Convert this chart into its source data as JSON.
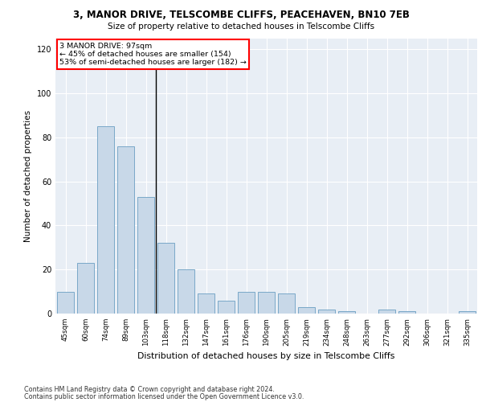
{
  "title1": "3, MANOR DRIVE, TELSCOMBE CLIFFS, PEACEHAVEN, BN10 7EB",
  "title2": "Size of property relative to detached houses in Telscombe Cliffs",
  "xlabel": "Distribution of detached houses by size in Telscombe Cliffs",
  "ylabel": "Number of detached properties",
  "categories": [
    "45sqm",
    "60sqm",
    "74sqm",
    "89sqm",
    "103sqm",
    "118sqm",
    "132sqm",
    "147sqm",
    "161sqm",
    "176sqm",
    "190sqm",
    "205sqm",
    "219sqm",
    "234sqm",
    "248sqm",
    "263sqm",
    "277sqm",
    "292sqm",
    "306sqm",
    "321sqm",
    "335sqm"
  ],
  "values": [
    10,
    23,
    85,
    76,
    53,
    32,
    20,
    9,
    6,
    10,
    10,
    9,
    3,
    2,
    1,
    0,
    2,
    1,
    0,
    0,
    1
  ],
  "bar_color": "#c8d8e8",
  "bar_edge_color": "#7aa8c8",
  "annotation_text_line1": "3 MANOR DRIVE: 97sqm",
  "annotation_text_line2": "← 45% of detached houses are smaller (154)",
  "annotation_text_line3": "53% of semi-detached houses are larger (182) →",
  "annotation_box_color": "white",
  "annotation_box_edge_color": "red",
  "vline_color": "black",
  "vline_x": 4.5,
  "ylim": [
    0,
    125
  ],
  "yticks": [
    0,
    20,
    40,
    60,
    80,
    100,
    120
  ],
  "background_color": "#e8eef5",
  "grid_color": "white",
  "footer1": "Contains HM Land Registry data © Crown copyright and database right 2024.",
  "footer2": "Contains public sector information licensed under the Open Government Licence v3.0."
}
